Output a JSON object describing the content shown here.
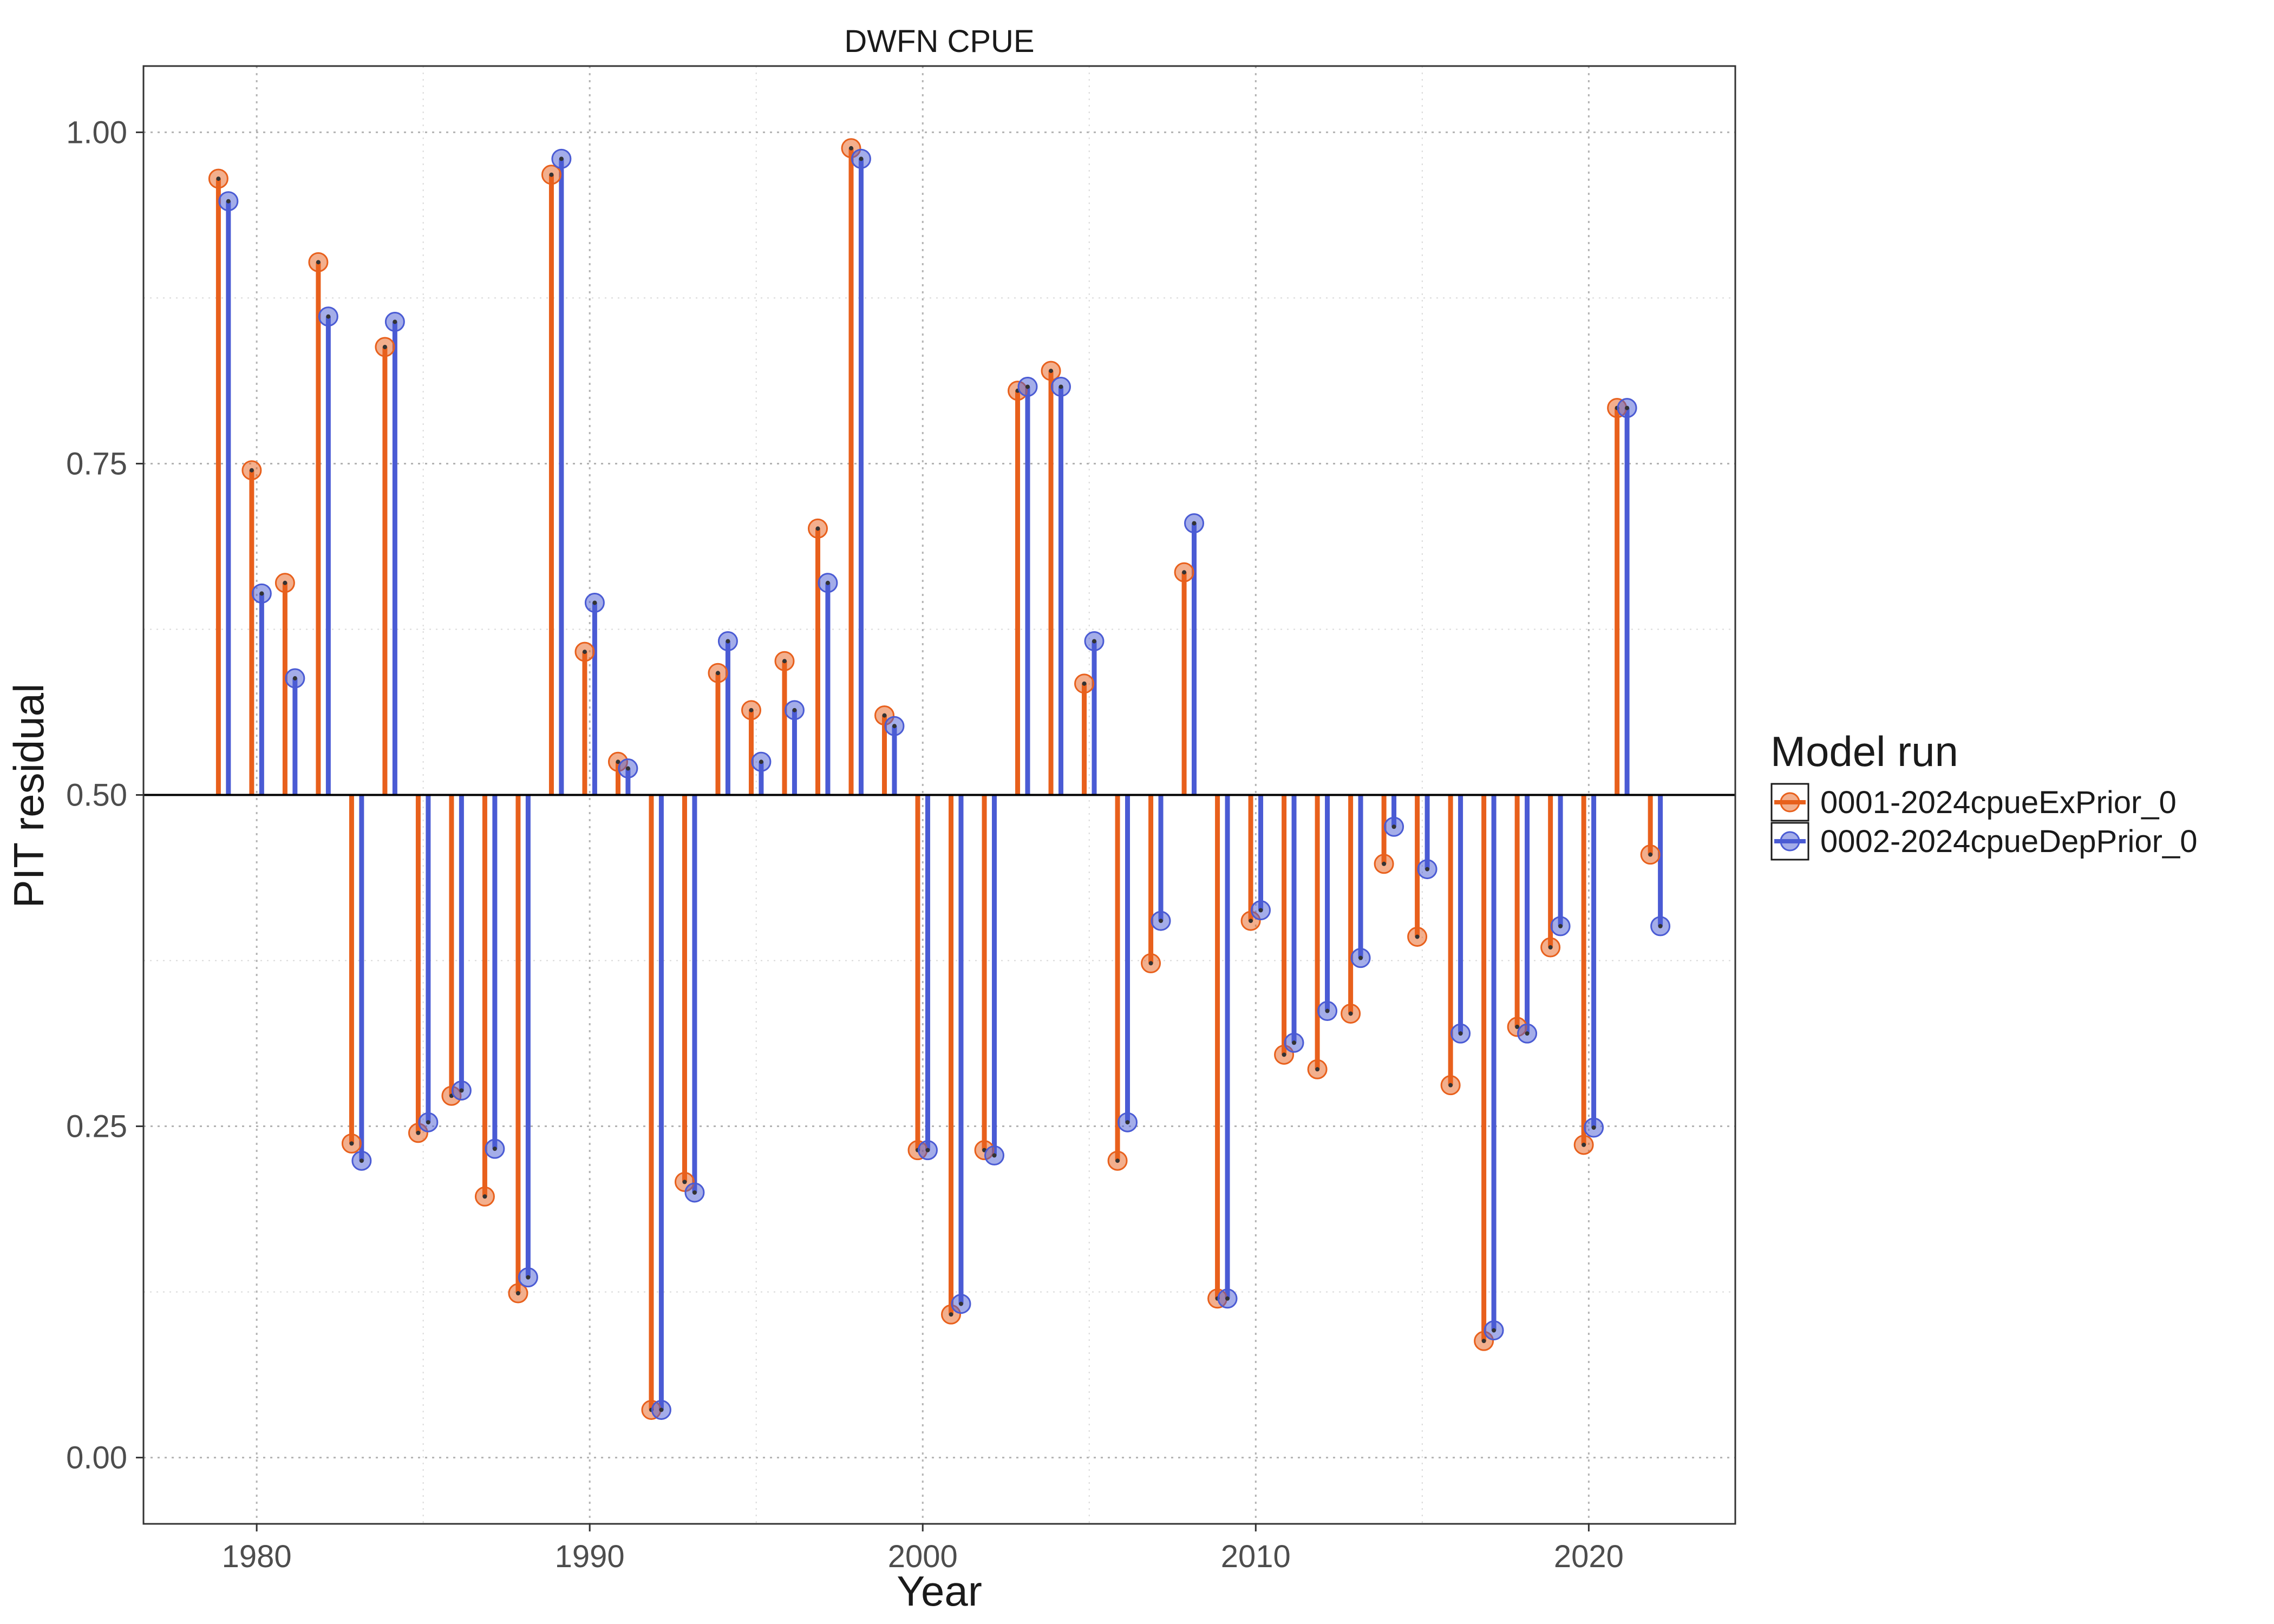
{
  "chart_data": {
    "type": "lollipop",
    "title": "DWFN CPUE",
    "xlabel": "Year",
    "ylabel": "PIT residual",
    "xlim": [
      1976.6,
      2024.4
    ],
    "ylim": [
      -0.05,
      1.05
    ],
    "baseline": 0.5,
    "x_ticks": [
      1980,
      1990,
      2000,
      2010,
      2020
    ],
    "x_minor_ticks": [
      1985,
      1995,
      2005,
      2015
    ],
    "y_ticks": [
      0.0,
      0.25,
      0.5,
      0.75,
      1.0
    ],
    "y_tick_labels": [
      "0.00",
      "0.25",
      "0.50",
      "0.75",
      "1.00"
    ],
    "y_minor_ticks": [
      0.125,
      0.375,
      0.625,
      0.875
    ],
    "grid": true,
    "legend_position": "right",
    "legend_title": "Model run",
    "years": [
      1979,
      1980,
      1981,
      1982,
      1983,
      1984,
      1985,
      1986,
      1987,
      1988,
      1989,
      1990,
      1991,
      1992,
      1993,
      1994,
      1995,
      1996,
      1997,
      1998,
      1999,
      2000,
      2001,
      2002,
      2003,
      2004,
      2005,
      2006,
      2007,
      2008,
      2009,
      2010,
      2011,
      2012,
      2013,
      2014,
      2015,
      2016,
      2017,
      2018,
      2019,
      2020,
      2021,
      2022
    ],
    "series": [
      {
        "name": "0001-2024cpueExPrior_0",
        "color": "#e8601c",
        "offset": -0.15,
        "values": [
          0.965,
          0.745,
          0.66,
          0.902,
          0.237,
          0.838,
          0.245,
          0.273,
          0.197,
          0.124,
          0.968,
          0.608,
          0.525,
          0.036,
          0.208,
          0.592,
          0.564,
          0.601,
          0.701,
          0.988,
          0.56,
          0.232,
          0.108,
          0.232,
          0.805,
          0.82,
          0.584,
          0.224,
          0.373,
          0.668,
          0.12,
          0.405,
          0.304,
          0.293,
          0.335,
          0.448,
          0.393,
          0.281,
          0.088,
          0.325,
          0.385,
          0.236,
          0.792,
          0.455
        ]
      },
      {
        "name": "0002-2024cpueDepPrior_0",
        "color": "#4a5bd4",
        "offset": 0.15,
        "values": [
          0.948,
          0.652,
          0.588,
          0.861,
          0.224,
          0.857,
          0.253,
          0.277,
          0.233,
          0.136,
          0.98,
          0.645,
          0.52,
          0.036,
          0.2,
          0.616,
          0.525,
          0.564,
          0.66,
          0.98,
          0.552,
          0.232,
          0.116,
          0.228,
          0.808,
          0.808,
          0.616,
          0.253,
          0.405,
          0.705,
          0.12,
          0.413,
          0.313,
          0.337,
          0.377,
          0.476,
          0.444,
          0.32,
          0.096,
          0.32,
          0.401,
          0.249,
          0.792,
          0.401
        ]
      }
    ]
  }
}
